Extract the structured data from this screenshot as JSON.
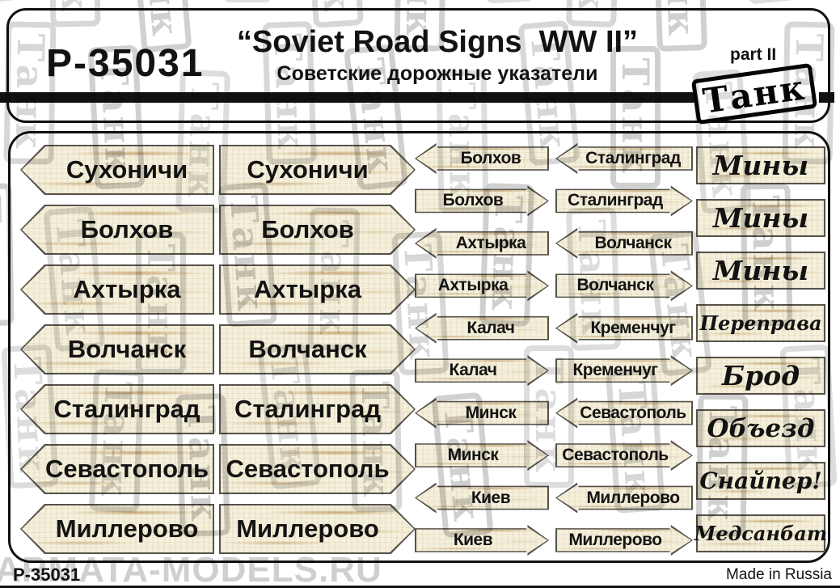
{
  "header": {
    "code": "P-35031",
    "title": "“Soviet Road Signs  WW II”",
    "subtitle": "Советские дорожные указатели",
    "part_label": "part II",
    "brand": "Танк"
  },
  "signs": {
    "large": [
      "Сухоничи",
      "Болхов",
      "Ахтырка",
      "Волчанск",
      "Сталинград",
      "Севастополь",
      "Миллерово"
    ],
    "small": [
      {
        "left": "Болхов",
        "right": "Сталинград"
      },
      {
        "left": "Болхов",
        "right": "Сталинград"
      },
      {
        "left": "Ахтырка",
        "right": "Волчанск"
      },
      {
        "left": "Ахтырка",
        "right": "Волчанск"
      },
      {
        "left": "Калач",
        "right": "Кременчуг"
      },
      {
        "left": "Калач",
        "right": "Кременчуг"
      },
      {
        "left": "Минск",
        "right": "Севастополь"
      },
      {
        "left": "Минск",
        "right": "Севастополь"
      },
      {
        "left": "Киев",
        "right": "Миллерово"
      },
      {
        "left": "Киев",
        "right": "Миллерово"
      }
    ],
    "script": [
      "Мины",
      "Мины",
      "Мины",
      "Переправа",
      "Брод",
      "Объезд",
      "Снайпер!",
      "Медсанбат"
    ]
  },
  "footer": {
    "code": "P-35031",
    "made_in": "Made in Russia",
    "site_watermark": "ARMATA-MODELS.RU"
  },
  "watermark": {
    "text": "Танк"
  },
  "colors": {
    "wood": "#f5f0dc",
    "grain": "#a66c10",
    "outline": "#56534b",
    "ink": "#131313",
    "watermark_gray": "#c9c9c9"
  }
}
